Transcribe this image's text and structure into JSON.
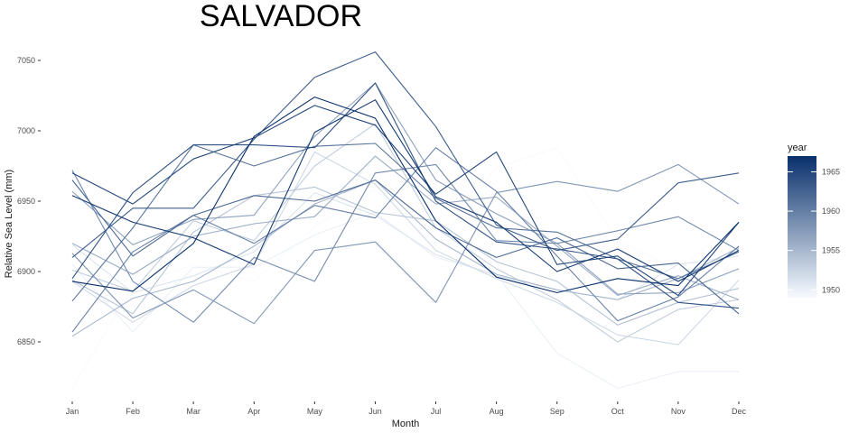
{
  "chart_data": {
    "type": "line",
    "title": "SALVADOR",
    "xlabel": "Month",
    "ylabel": "Relative Sea Level (mm)",
    "categories": [
      "Jan",
      "Feb",
      "Mar",
      "Apr",
      "May",
      "Jun",
      "Jul",
      "Aug",
      "Sep",
      "Oct",
      "Nov",
      "Dec"
    ],
    "yticks": [
      6850,
      6900,
      6950,
      7000,
      7050
    ],
    "ylim": [
      6810,
      7060
    ],
    "grid": false,
    "legend": {
      "title": "year",
      "placement": "right",
      "type": "colorbar",
      "ticks": [
        1950,
        1955,
        1960,
        1965
      ],
      "range": [
        1949,
        1967
      ],
      "color_low": "#f7fbff",
      "color_high": "#08306b"
    },
    "series": [
      {
        "year": 1949,
        "values": [
          6817,
          6890,
          6905,
          6893,
          6932,
          6958,
          6918,
          6974,
          6988,
          6922,
          6901,
          6937
        ]
      },
      {
        "year": 1950,
        "values": [
          6905,
          6857,
          6903,
          6903,
          6926,
          6942,
          6910,
          6898,
          6842,
          6817,
          6829,
          6829
        ]
      },
      {
        "year": 1951,
        "values": [
          6919,
          6885,
          6897,
          6914,
          6956,
          6940,
          6912,
          6897,
          6887,
          6880,
          6905,
          6911
        ]
      },
      {
        "year": 1952,
        "values": [
          6893,
          6864,
          6890,
          6905,
          6985,
          6962,
          6915,
          6895,
          6878,
          6855,
          6848,
          6894
        ]
      },
      {
        "year": 1953,
        "values": [
          6901,
          6886,
          6936,
          6922,
          6975,
          7005,
          6931,
          6902,
          6880,
          6850,
          6873,
          6880
        ]
      },
      {
        "year": 1954,
        "values": [
          6894,
          6870,
          6928,
          6954,
          6960,
          6942,
          6936,
          6907,
          6893,
          6862,
          6878,
          6888
        ]
      },
      {
        "year": 1955,
        "values": [
          6854,
          6881,
          6893,
          6918,
          6948,
          6965,
          6923,
          6898,
          6887,
          6880,
          6895,
          6917
        ]
      },
      {
        "year": 1956,
        "values": [
          6920,
          6898,
          6925,
          6934,
          6939,
          6982,
          6948,
          6953,
          6918,
          6883,
          6897,
          6880
        ]
      },
      {
        "year": 1957,
        "values": [
          6957,
          6919,
          6937,
          6940,
          6996,
          7034,
          6965,
          6941,
          6920,
          6884,
          6885,
          6902
        ]
      },
      {
        "year": 1958,
        "values": [
          6913,
          6867,
          6887,
          6863,
          6915,
          6921,
          6878,
          6956,
          6964,
          6957,
          6976,
          6948
        ]
      },
      {
        "year": 1959,
        "values": [
          6972,
          6893,
          6864,
          6910,
          6893,
          6970,
          6976,
          6922,
          6920,
          6929,
          6939,
          6915
        ]
      },
      {
        "year": 1960,
        "values": [
          6857,
          6914,
          6940,
          6920,
          6947,
          6938,
          6988,
          6957,
          6911,
          6865,
          6882,
          6918
        ]
      },
      {
        "year": 1961,
        "values": [
          6879,
          6931,
          6990,
          6975,
          6989,
          6991,
          6952,
          6931,
          6928,
          6909,
          6895,
          6914
        ]
      },
      {
        "year": 1962,
        "values": [
          6965,
          6911,
          6940,
          6954,
          6950,
          6965,
          6931,
          6910,
          6924,
          6902,
          6906,
          6870
        ]
      },
      {
        "year": 1963,
        "values": [
          6910,
          6945,
          6945,
          6994,
          7038,
          7056,
          7003,
          6933,
          6915,
          6923,
          6963,
          6970
        ]
      },
      {
        "year": 1964,
        "values": [
          6895,
          6956,
          6990,
          6990,
          6988,
          7034,
          6950,
          6921,
          6916,
          6909,
          6878,
          6874
        ]
      },
      {
        "year": 1965,
        "values": [
          6970,
          6948,
          6980,
          6995,
          7018,
          7004,
          6955,
          6985,
          6905,
          6911,
          6883,
          6935
        ]
      },
      {
        "year": 1966,
        "values": [
          6954,
          6935,
          6924,
          6905,
          6999,
          7022,
          6953,
          6935,
          6900,
          6916,
          6893,
          6915
        ]
      },
      {
        "year": 1967,
        "values": [
          6893,
          6886,
          6920,
          6996,
          7024,
          7009,
          6936,
          6896,
          6885,
          6895,
          6890,
          6935
        ]
      }
    ]
  }
}
